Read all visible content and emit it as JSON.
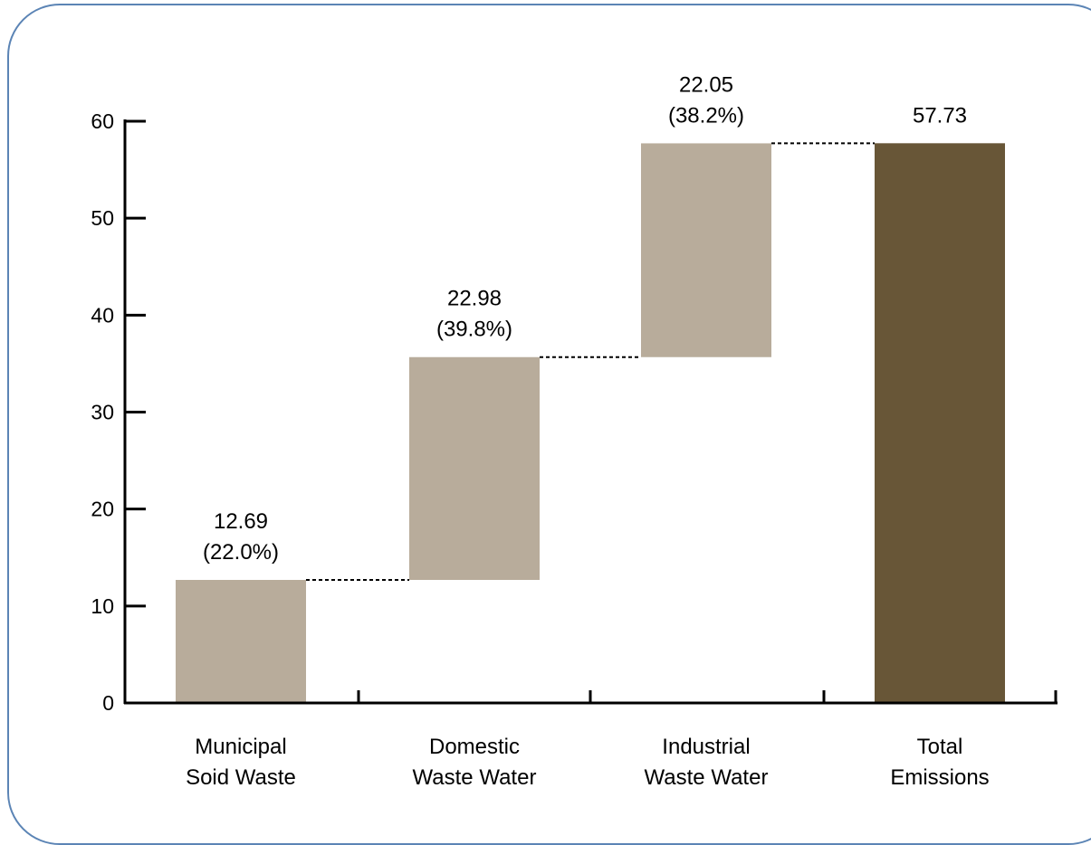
{
  "chart_data": {
    "type": "bar",
    "subtype": "waterfall",
    "categories": [
      [
        "Municipal",
        "Soid Waste"
      ],
      [
        "Domestic",
        "Waste Water"
      ],
      [
        "Industrial",
        "Waste Water"
      ],
      [
        "Total",
        "Emissions"
      ]
    ],
    "values": [
      12.69,
      22.98,
      22.05,
      57.73
    ],
    "bases": [
      0,
      12.69,
      35.67,
      0
    ],
    "labels": [
      [
        "12.69",
        "(22.0%)"
      ],
      [
        "22.98",
        "(39.8%)"
      ],
      [
        "22.05",
        "(38.2%)"
      ],
      [
        "57.73"
      ]
    ],
    "ylim": [
      0,
      60
    ],
    "yticks": [
      "0",
      "10",
      "20",
      "30",
      "40",
      "50",
      "60"
    ],
    "colors": {
      "component": "#b8ac9b",
      "total": "#685637",
      "frame": "#5b84b5",
      "connector": "#000000"
    },
    "connectors": "dotted",
    "grid": false,
    "legend": "none"
  }
}
